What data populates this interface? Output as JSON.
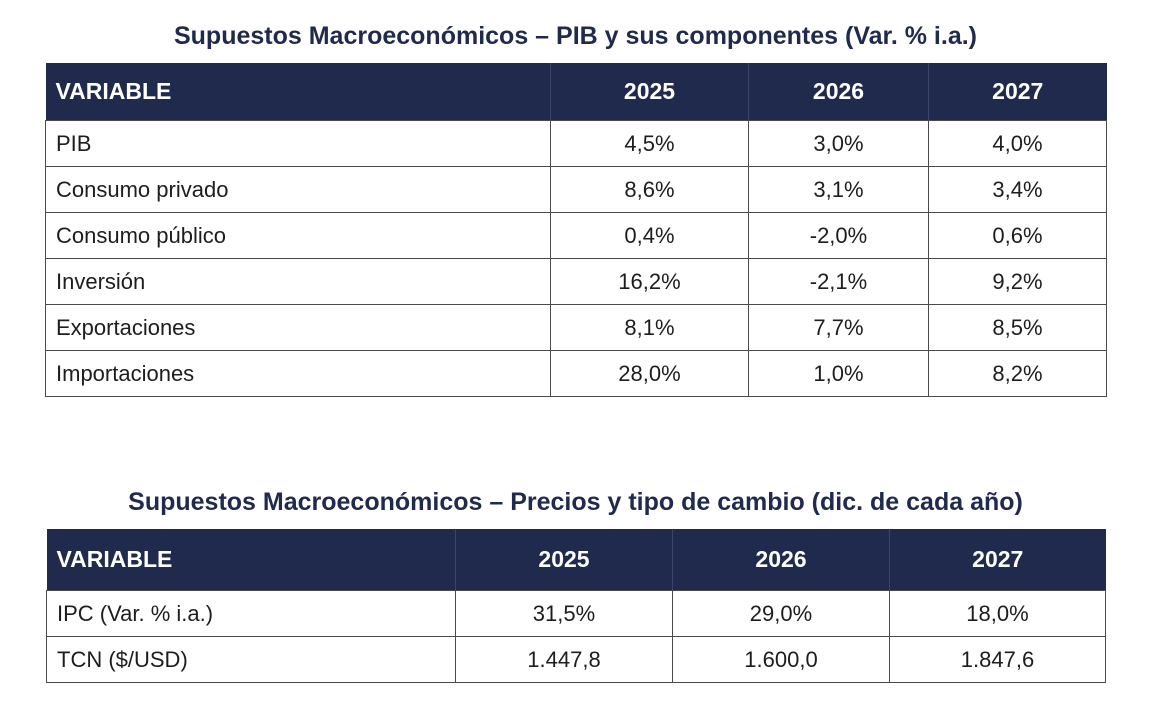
{
  "table1": {
    "title": "Supuestos Macroeconómicos – PIB y sus componentes (Var. % i.a.)",
    "headers": [
      "VARIABLE",
      "2025",
      "2026",
      "2027"
    ],
    "rows": [
      [
        "PIB",
        "4,5%",
        "3,0%",
        "4,0%"
      ],
      [
        "Consumo privado",
        "8,6%",
        "3,1%",
        "3,4%"
      ],
      [
        "Consumo público",
        "0,4%",
        "-2,0%",
        "0,6%"
      ],
      [
        "Inversión",
        "16,2%",
        "-2,1%",
        "9,2%"
      ],
      [
        "Exportaciones",
        "8,1%",
        "7,7%",
        "8,5%"
      ],
      [
        "Importaciones",
        "28,0%",
        "1,0%",
        "8,2%"
      ]
    ]
  },
  "table2": {
    "title": "Supuestos Macroeconómicos – Precios y tipo de cambio (dic. de cada año)",
    "headers": [
      "VARIABLE",
      "2025",
      "2026",
      "2027"
    ],
    "rows": [
      [
        "IPC (Var. % i.a.)",
        "31,5%",
        "29,0%",
        "18,0%"
      ],
      [
        "TCN ($/USD)",
        "1.447,8",
        "1.600,0",
        "1.847,6"
      ]
    ]
  },
  "colors": {
    "header_bg": "#1f2a4d",
    "header_text": "#ffffff",
    "title_text": "#1f2a4d",
    "border": "#4a4a4a"
  }
}
